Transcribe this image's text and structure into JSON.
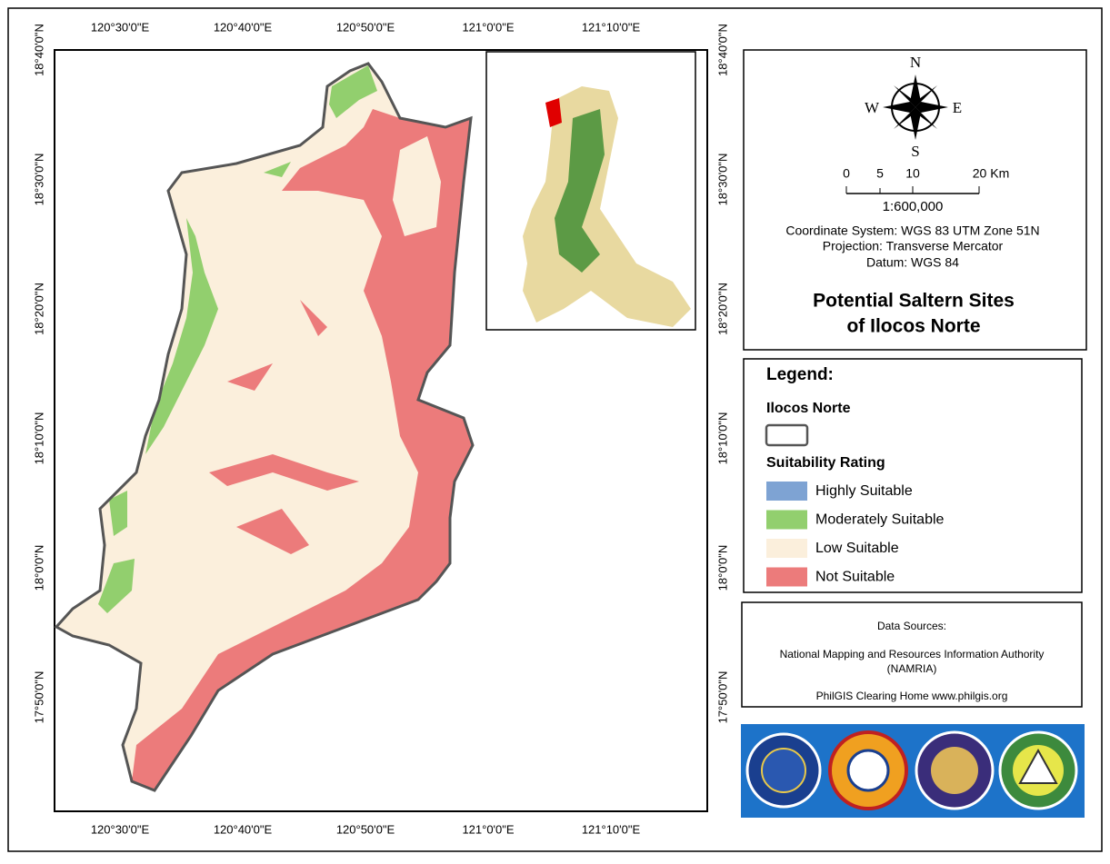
{
  "graticule": {
    "x_labels": [
      "120°30'0\"E",
      "120°40'0\"E",
      "120°50'0\"E",
      "121°0'0\"E",
      "121°10'0\"E"
    ],
    "y_labels": [
      "18°40'0\"N",
      "18°30'0\"N",
      "18°20'0\"N",
      "18°10'0\"N",
      "18°0'0\"N",
      "17°50'0\"N"
    ]
  },
  "compass": {
    "north": "N",
    "south": "S",
    "east": "E",
    "west": "W"
  },
  "scale_bar": {
    "ticks": [
      "0",
      "5",
      "10",
      "20 Km"
    ],
    "ratio": "1:600,000"
  },
  "info": [
    "Coordinate System: WGS 83 UTM Zone 51N",
    "Projection: Transverse Mercator",
    "Datum: WGS 84"
  ],
  "title": [
    "Potential Saltern Sites",
    "of Ilocos Norte"
  ],
  "legend": {
    "title": "Legend:",
    "boundary_heading": "Ilocos Norte",
    "rating_heading": "Suitability Rating",
    "items": [
      {
        "label": "Highly Suitable",
        "color": "#7ea3d3"
      },
      {
        "label": "Moderately Suitable",
        "color": "#92cf6e"
      },
      {
        "label": "Low Suitable",
        "color": "#fbefdc"
      },
      {
        "label": "Not Suitable",
        "color": "#ec7b7b"
      }
    ]
  },
  "sources": {
    "heading": "Data Sources:",
    "lines": [
      "National Mapping and Resources Information Authority",
      "(NAMRIA)",
      "PhilGIS Clearing Home www.philgis.org"
    ]
  }
}
